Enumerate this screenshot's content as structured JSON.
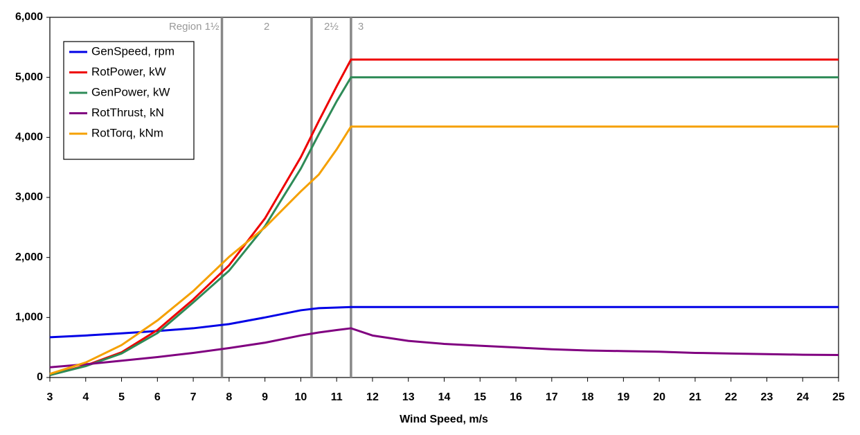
{
  "chart_data": {
    "type": "line",
    "xlabel": "Wind Speed, m/s",
    "x": [
      3,
      4,
      5,
      6,
      7,
      8,
      9,
      10,
      10.5,
      11,
      11.4,
      12,
      13,
      14,
      15,
      16,
      17,
      18,
      19,
      20,
      21,
      22,
      23,
      24,
      25
    ],
    "series": [
      {
        "name": "GenSpeed, rpm",
        "color": "#0000e6",
        "values": [
          670,
          700,
          735,
          775,
          820,
          890,
          1000,
          1120,
          1155,
          1165,
          1174,
          1174,
          1174,
          1174,
          1174,
          1174,
          1174,
          1174,
          1174,
          1174,
          1174,
          1174,
          1174,
          1174,
          1174
        ]
      },
      {
        "name": "RotPower, kW",
        "color": "#ee0000",
        "values": [
          40,
          200,
          420,
          790,
          1300,
          1870,
          2650,
          3670,
          4270,
          4850,
          5296,
          5296,
          5296,
          5296,
          5296,
          5296,
          5296,
          5296,
          5296,
          5296,
          5296,
          5296,
          5296,
          5296,
          5296
        ]
      },
      {
        "name": "GenPower, kW",
        "color": "#2e8b57",
        "values": [
          40,
          190,
          400,
          740,
          1250,
          1780,
          2520,
          3480,
          4050,
          4600,
          5000,
          5000,
          5000,
          5000,
          5000,
          5000,
          5000,
          5000,
          5000,
          5000,
          5000,
          5000,
          5000,
          5000,
          5000
        ]
      },
      {
        "name": "RotThrust, kN",
        "color": "#800080",
        "values": [
          170,
          220,
          280,
          340,
          410,
          490,
          580,
          700,
          750,
          790,
          820,
          700,
          610,
          560,
          530,
          500,
          470,
          450,
          440,
          430,
          410,
          400,
          390,
          380,
          375
        ]
      },
      {
        "name": "RotTorq, kNm",
        "color": "#f5a000",
        "values": [
          60,
          250,
          540,
          950,
          1440,
          2010,
          2500,
          3100,
          3380,
          3800,
          4180,
          4180,
          4180,
          4180,
          4180,
          4180,
          4180,
          4180,
          4180,
          4180,
          4180,
          4180,
          4180,
          4180,
          4180
        ]
      }
    ],
    "xlim": [
      3,
      25
    ],
    "xticks": [
      3,
      4,
      5,
      6,
      7,
      8,
      9,
      10,
      11,
      12,
      13,
      14,
      15,
      16,
      17,
      18,
      19,
      20,
      21,
      22,
      23,
      24,
      25
    ],
    "ylim": [
      0,
      6000
    ],
    "yticks": [
      0,
      {
        "value": 1000,
        "label": "1,000"
      },
      {
        "value": 2000,
        "label": "2,000"
      },
      {
        "value": 3000,
        "label": "3,000"
      },
      {
        "value": 4000,
        "label": "4,000"
      },
      {
        "value": 5000,
        "label": "5,000"
      },
      {
        "value": 6000,
        "label": "6,000"
      }
    ],
    "grid": false,
    "legend": "upper-left",
    "regions": {
      "boundaries": [
        7.8,
        10.3,
        11.4
      ],
      "labels": [
        "Region 1½",
        "2",
        "2½",
        "3"
      ],
      "color": "#888888"
    }
  }
}
